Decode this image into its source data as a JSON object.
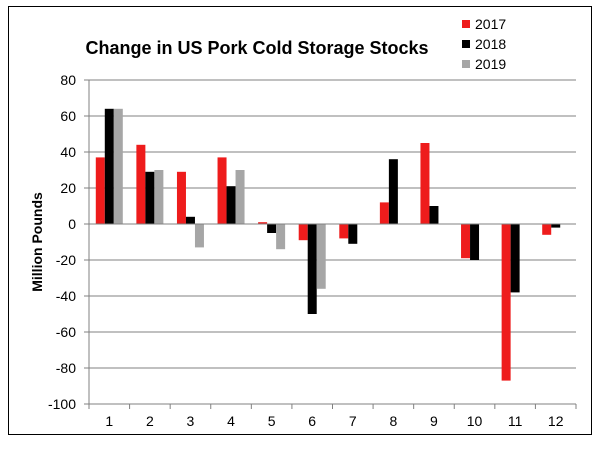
{
  "chart_data": {
    "type": "bar",
    "title": "Change in US Pork Cold Storage Stocks",
    "xlabel": "",
    "ylabel": "Million Pounds",
    "categories": [
      "1",
      "2",
      "3",
      "4",
      "5",
      "6",
      "7",
      "8",
      "9",
      "10",
      "11",
      "12"
    ],
    "ylim": [
      -100,
      80
    ],
    "yticks": [
      80,
      60,
      40,
      20,
      0,
      -20,
      -40,
      -60,
      -80,
      -100
    ],
    "grid": true,
    "legend_position": "top-right",
    "series": [
      {
        "name": "2017",
        "color": "#ee1c1c",
        "values": [
          37,
          44,
          29,
          37,
          1,
          -9,
          -8,
          12,
          45,
          -19,
          -87,
          -6
        ]
      },
      {
        "name": "2018",
        "color": "#000000",
        "values": [
          64,
          29,
          4,
          21,
          -5,
          -50,
          -11,
          36,
          10,
          -20,
          -38,
          -2
        ]
      },
      {
        "name": "2019",
        "color": "#a6a6a6",
        "values": [
          64,
          30,
          -13,
          30,
          -14,
          -36,
          null,
          null,
          null,
          null,
          null,
          null
        ]
      }
    ]
  }
}
